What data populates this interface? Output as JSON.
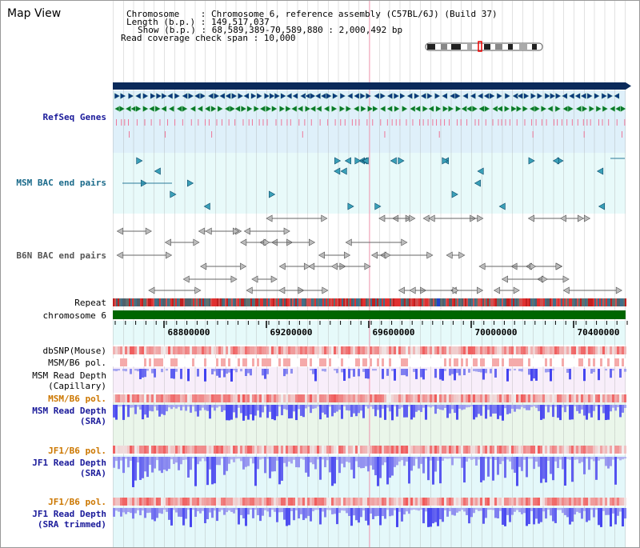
{
  "header": {
    "title": "Map View",
    "info_lines": [
      "Chromosome    : Chromosome 6, reference assembly (C57BL/6J) (Build 37)",
      "Length (b.p.) : 149,517,037",
      "Show (b.p.) : 68,589,389-70,589,880 : 2,000,492 bp",
      "Read coverage check span : 10,000"
    ]
  },
  "tracks": {
    "refseq": "RefSeq Genes",
    "msm_bac": "MSM BAC end pairs",
    "b6n_bac": "B6N BAC end pairs",
    "repeat": "Repeat",
    "chromosome": "chromosome 6",
    "dbsnp": "dbSNP(Mouse)",
    "msm_b6_pol_1": "MSM/B6 pol.",
    "msm_depth_cap_1": "MSM Read Depth",
    "msm_depth_cap_2": "(Capillary)",
    "msm_b6_pol_2": "MSM/B6 pol.",
    "msm_depth_sra_1": "MSM Read Depth",
    "msm_depth_sra_2": "(SRA)",
    "jf1_b6_pol_1": "JF1/B6 pol.",
    "jf1_depth_sra_1": "JF1 Read Depth",
    "jf1_depth_sra_2": "(SRA)",
    "jf1_b6_pol_2": "JF1/B6 pol.",
    "jf1_depth_trim_1": "JF1 Read Depth",
    "jf1_depth_trim_2": "(SRA trimmed)"
  },
  "axis": {
    "ticks": [
      "68800000",
      "69200000",
      "69600000",
      "70000000",
      "70400000"
    ],
    "tick_values": [
      68800000,
      69200000,
      69600000,
      70000000,
      70400000
    ],
    "range": [
      68589389,
      70589880
    ]
  },
  "colors": {
    "navy": "#0a2a5a",
    "refseq_label": "#1a1a9a",
    "msm_label": "#1a6a8a",
    "pol_label_orange": "#cc7700",
    "depth_blue": "#3333cc",
    "chrom_green": "#006600"
  }
}
